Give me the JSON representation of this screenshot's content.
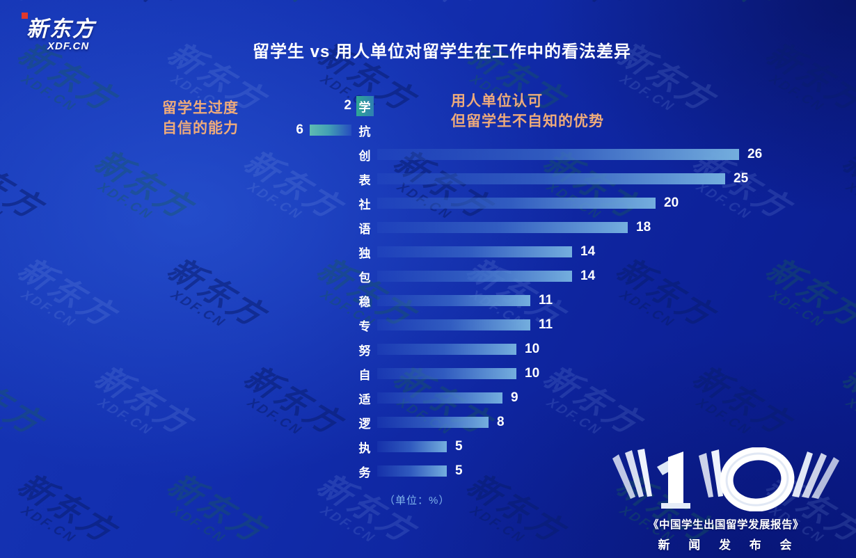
{
  "logo": {
    "brand": "新东方",
    "domain": "XDF.CN"
  },
  "title": "留学生 vs 用人单位对留学生在工作中的看法差异",
  "watermark": {
    "line1": "新东方",
    "line2": "XDF.CN"
  },
  "chart": {
    "left_header_line1": "留学生过度",
    "left_header_line2": "自信的能力",
    "right_header_line1": "用人单位认可",
    "right_header_line2": "但留学生不自知的优势",
    "unit_note": "（单位：%）"
  },
  "colors": {
    "background_blue": "#122eae",
    "accent_orange": "#eeab7b",
    "bar_blue_light": "#74aede",
    "bar_teal": "#5fbcb1",
    "unit_text_blue": "#7fb3ea",
    "logo_accent_red": "#e0392c"
  },
  "chart_data": {
    "type": "bar",
    "orientation": "horizontal-diverging",
    "title": "留学生 vs 用人单位对留学生在工作中的看法差异",
    "unit": "%",
    "categories": [
      "学",
      "抗",
      "创",
      "表",
      "社",
      "语",
      "独",
      "包",
      "稳",
      "专",
      "努",
      "自",
      "适",
      "逻",
      "执",
      "务"
    ],
    "series": [
      {
        "name": "留学生过度自信的能力",
        "side": "left",
        "values": [
          2,
          6,
          null,
          null,
          null,
          null,
          null,
          null,
          null,
          null,
          null,
          null,
          null,
          null,
          null,
          null
        ]
      },
      {
        "name": "用人单位认可但留学生不自知的优势",
        "side": "right",
        "values": [
          null,
          null,
          26,
          25,
          20,
          18,
          14,
          14,
          11,
          11,
          10,
          10,
          9,
          8,
          5,
          5
        ]
      }
    ],
    "left_bar_on_label": "学",
    "value_labels_shown": true,
    "axis_shown": false
  },
  "footer": {
    "big_number": "10",
    "report_title": "《中国学生出国留学发展报告》",
    "event_line": "新 闻 发 布 会"
  }
}
